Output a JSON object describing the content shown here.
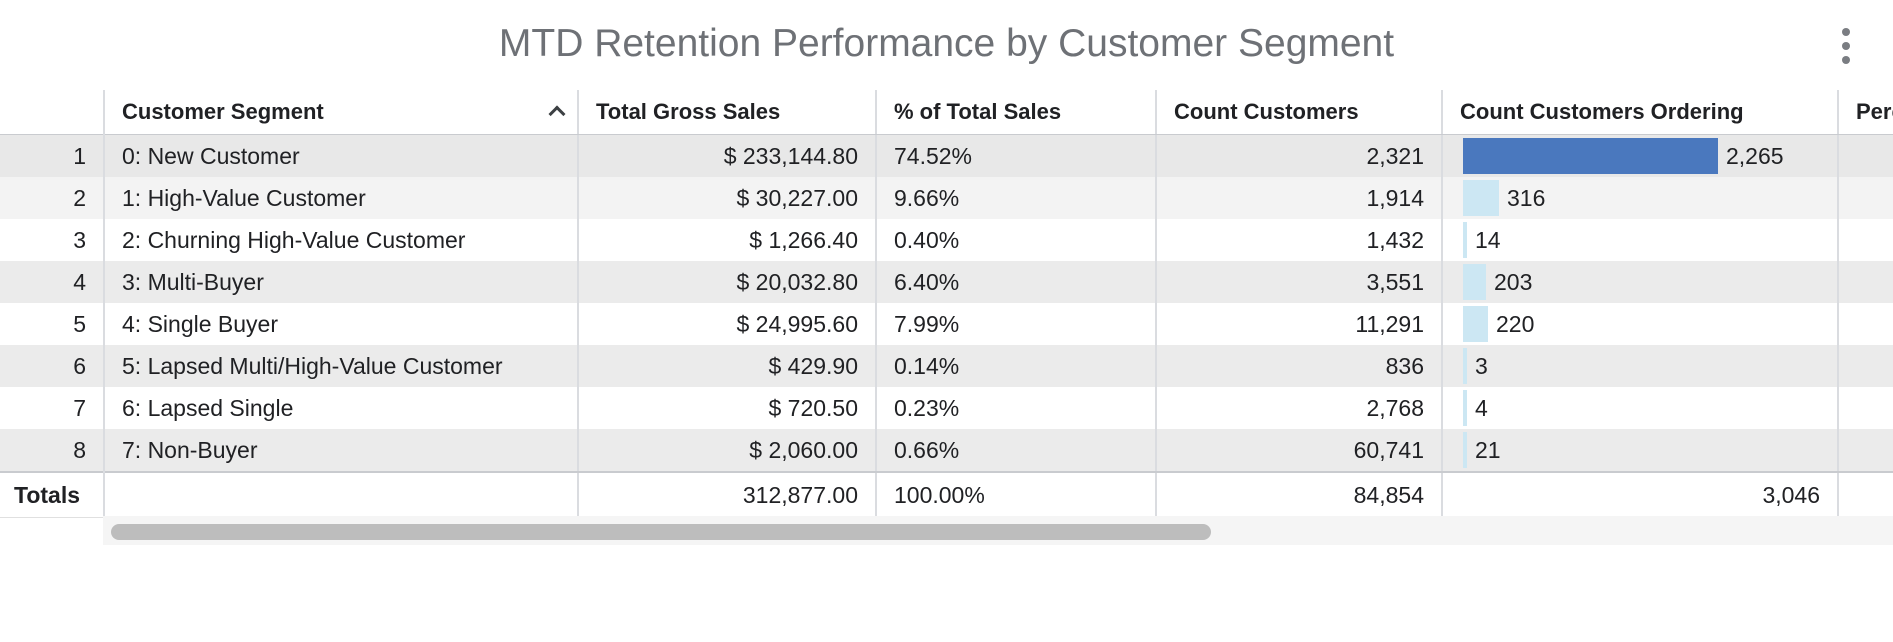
{
  "title": "MTD Retention Performance by Customer Segment",
  "menu_icon": "more-vert-icon",
  "colors": {
    "bar_max": "#4a78be",
    "bar_light": "#cce7f3",
    "title": "#6e7176"
  },
  "columns": [
    "Customer Segment",
    "Total Gross Sales",
    "% of Total Sales",
    "Count Customers",
    "Count Customers Ordering",
    "Perc"
  ],
  "sort": {
    "column": "Customer Segment",
    "direction": "ascending",
    "icon": "chevron-up-icon"
  },
  "rows": [
    {
      "num": "1",
      "segment": "0: New Customer",
      "gross": "$ 233,144.80",
      "pct": "74.52%",
      "customers": "2,321",
      "ordering": "2,265",
      "ordering_value": 2265
    },
    {
      "num": "2",
      "segment": "1: High-Value Customer",
      "gross": "$ 30,227.00",
      "pct": "9.66%",
      "customers": "1,914",
      "ordering": "316",
      "ordering_value": 316
    },
    {
      "num": "3",
      "segment": "2: Churning High-Value Customer",
      "gross": "$ 1,266.40",
      "pct": "0.40%",
      "customers": "1,432",
      "ordering": "14",
      "ordering_value": 14
    },
    {
      "num": "4",
      "segment": "3: Multi-Buyer",
      "gross": "$ 20,032.80",
      "pct": "6.40%",
      "customers": "3,551",
      "ordering": "203",
      "ordering_value": 203
    },
    {
      "num": "5",
      "segment": "4: Single Buyer",
      "gross": "$ 24,995.60",
      "pct": "7.99%",
      "customers": "11,291",
      "ordering": "220",
      "ordering_value": 220
    },
    {
      "num": "6",
      "segment": "5: Lapsed Multi/High-Value Customer",
      "gross": "$ 429.90",
      "pct": "0.14%",
      "customers": "836",
      "ordering": "3",
      "ordering_value": 3
    },
    {
      "num": "7",
      "segment": "6: Lapsed Single",
      "gross": "$ 720.50",
      "pct": "0.23%",
      "customers": "2,768",
      "ordering": "4",
      "ordering_value": 4
    },
    {
      "num": "8",
      "segment": "7: Non-Buyer",
      "gross": "$ 2,060.00",
      "pct": "0.66%",
      "customers": "60,741",
      "ordering": "21",
      "ordering_value": 21
    }
  ],
  "totals": {
    "label": "Totals",
    "segment": "",
    "gross": "312,877.00",
    "pct": "100.00%",
    "customers": "84,854",
    "ordering": "3,046"
  }
}
